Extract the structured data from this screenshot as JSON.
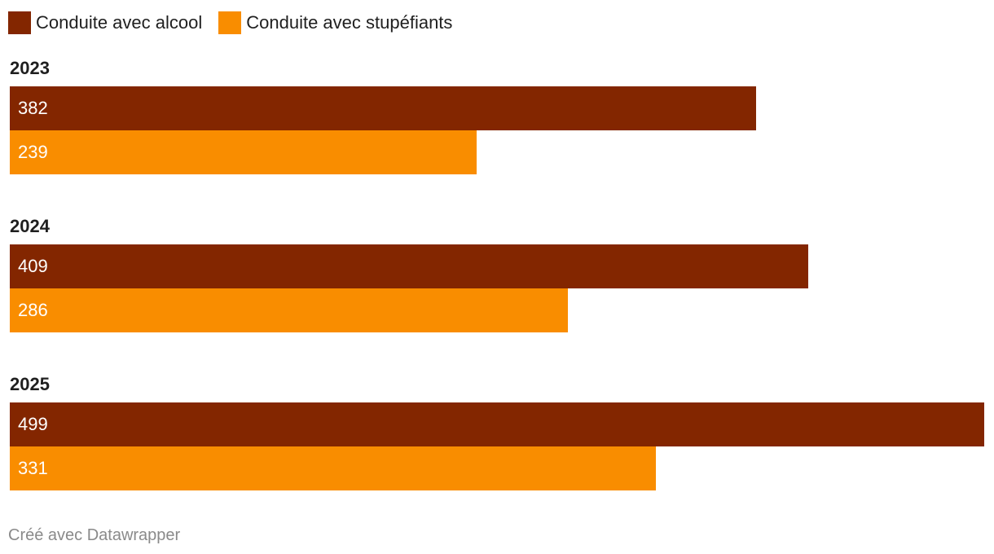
{
  "chart_data": {
    "type": "bar",
    "orientation": "horizontal",
    "categories": [
      "2023",
      "2024",
      "2025"
    ],
    "series": [
      {
        "name": "Conduite avec alcool",
        "values": [
          382,
          409,
          499
        ],
        "color": "#832600"
      },
      {
        "name": "Conduite avec stupéfiants",
        "values": [
          239,
          286,
          331
        ],
        "color": "#f98d00"
      }
    ],
    "xlim": [
      0,
      499
    ],
    "grid": false,
    "legend_position": "top-left",
    "value_labels": "inside-bar-start"
  },
  "legend": {
    "items": [
      {
        "label": "Conduite avec alcool",
        "color": "#832600",
        "icon": "square-swatch"
      },
      {
        "label": "Conduite avec stupéfiants",
        "color": "#f98d00",
        "icon": "square-swatch"
      }
    ]
  },
  "footer": {
    "credit": "Créé avec Datawrapper"
  }
}
